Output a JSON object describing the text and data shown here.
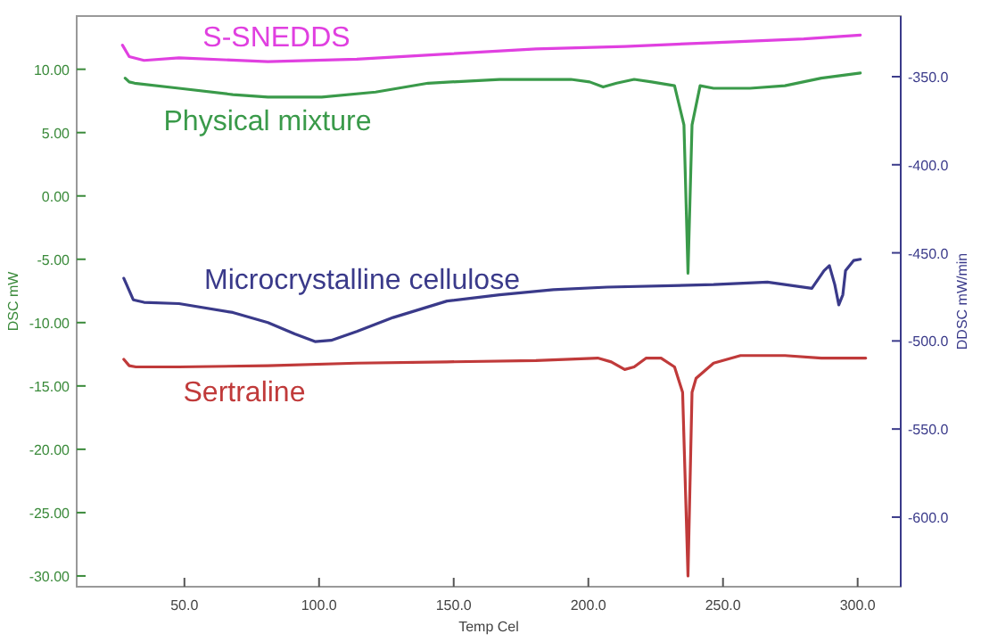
{
  "chart_data": {
    "type": "line",
    "xlabel": "Temp Cel",
    "ylabel": "DSC mW",
    "y2label": "DDSC mW/min",
    "xlim": [
      10,
      316
    ],
    "ylim": [
      -30.85,
      14.2
    ],
    "y2lim": [
      -639.5,
      -315.6
    ],
    "xticks": [
      {
        "value": 50,
        "label": "50.0"
      },
      {
        "value": 100,
        "label": "100.0"
      },
      {
        "value": 150,
        "label": "150.0"
      },
      {
        "value": 200,
        "label": "200.0"
      },
      {
        "value": 250,
        "label": "250.0"
      },
      {
        "value": 300,
        "label": "300.0"
      }
    ],
    "yticks": [
      {
        "value": 10,
        "label": "10.00"
      },
      {
        "value": 5,
        "label": "5.00"
      },
      {
        "value": 0,
        "label": "0.00"
      },
      {
        "value": -5,
        "label": "-5.00"
      },
      {
        "value": -10,
        "label": "-10.00"
      },
      {
        "value": -15,
        "label": "-15.00"
      },
      {
        "value": -20,
        "label": "-20.00"
      },
      {
        "value": -25,
        "label": "-25.00"
      },
      {
        "value": -30,
        "label": "-30.00"
      }
    ],
    "y2ticks": [
      {
        "value": -350,
        "label": "-350.0"
      },
      {
        "value": -400,
        "label": "-400.0"
      },
      {
        "value": -450,
        "label": "-450.0"
      },
      {
        "value": -500,
        "label": "-500.0"
      },
      {
        "value": -550,
        "label": "-550.0"
      },
      {
        "value": -600,
        "label": "-600.0"
      }
    ],
    "grid": false,
    "marker": "none",
    "line_style": "solid",
    "series": [
      {
        "name": "S-SNEDDS",
        "color": "#e040e0",
        "x": [
          27,
          29.5,
          35,
          48,
          81,
          114,
          147,
          180.5,
          213.5,
          246.5,
          280,
          301
        ],
        "values": [
          11.9,
          11,
          10.7,
          10.9,
          10.6,
          10.8,
          11.2,
          11.6,
          11.8,
          12.1,
          12.4,
          12.7
        ]
      },
      {
        "name": "Physical mixture",
        "color": "#3a9a4a",
        "x": [
          28,
          29.5,
          31.5,
          48,
          68,
          81,
          101,
          121,
          140.5,
          167,
          193.5,
          200.5,
          205.5,
          210.5,
          217,
          223.5,
          232,
          235.5,
          237,
          238.5,
          241.5,
          246.5,
          260,
          273,
          286.5,
          301
        ],
        "values": [
          9.3,
          9,
          8.9,
          8.5,
          8,
          7.8,
          7.8,
          8.2,
          8.9,
          9.2,
          9.2,
          9,
          8.6,
          8.9,
          9.2,
          9,
          8.7,
          5.6,
          -6.1,
          5.6,
          8.7,
          8.5,
          8.5,
          8.7,
          9.3,
          9.7
        ]
      },
      {
        "name": "Microcrystalline cellulose",
        "color": "#3a3a8a",
        "x": [
          27.5,
          31,
          35,
          48,
          68,
          81,
          91,
          98.5,
          104.5,
          114,
          127.5,
          147.5,
          167,
          187,
          207,
          246.5,
          266.5,
          276.5,
          283,
          287.5,
          289.5,
          291.5,
          293,
          294.5,
          295.5,
          298.5,
          301
        ],
        "values": [
          -6.5,
          -8.2,
          -8.4,
          -8.5,
          -9.2,
          -10,
          -10.9,
          -11.5,
          -11.4,
          -10.7,
          -9.6,
          -8.3,
          -7.8,
          -7.4,
          -7.2,
          -7,
          -6.8,
          -7.1,
          -7.3,
          -5.9,
          -5.5,
          -7,
          -8.6,
          -7.8,
          -5.9,
          -5.1,
          -5
        ]
      },
      {
        "name": "Sertraline",
        "color": "#c03a3a",
        "x": [
          27.5,
          29.5,
          32,
          48,
          81,
          114,
          147.5,
          180.5,
          203.5,
          208.5,
          213.5,
          217,
          221.5,
          227,
          232,
          235,
          237,
          238.5,
          240,
          246.5,
          256.5,
          273,
          286.5,
          303
        ],
        "values": [
          -12.9,
          -13.4,
          -13.5,
          -13.5,
          -13.4,
          -13.2,
          -13.1,
          -13,
          -12.8,
          -13.1,
          -13.7,
          -13.5,
          -12.8,
          -12.8,
          -13.5,
          -15.5,
          -30,
          -15.5,
          -14.4,
          -13.2,
          -12.6,
          -12.6,
          -12.8,
          -12.8
        ]
      }
    ]
  }
}
